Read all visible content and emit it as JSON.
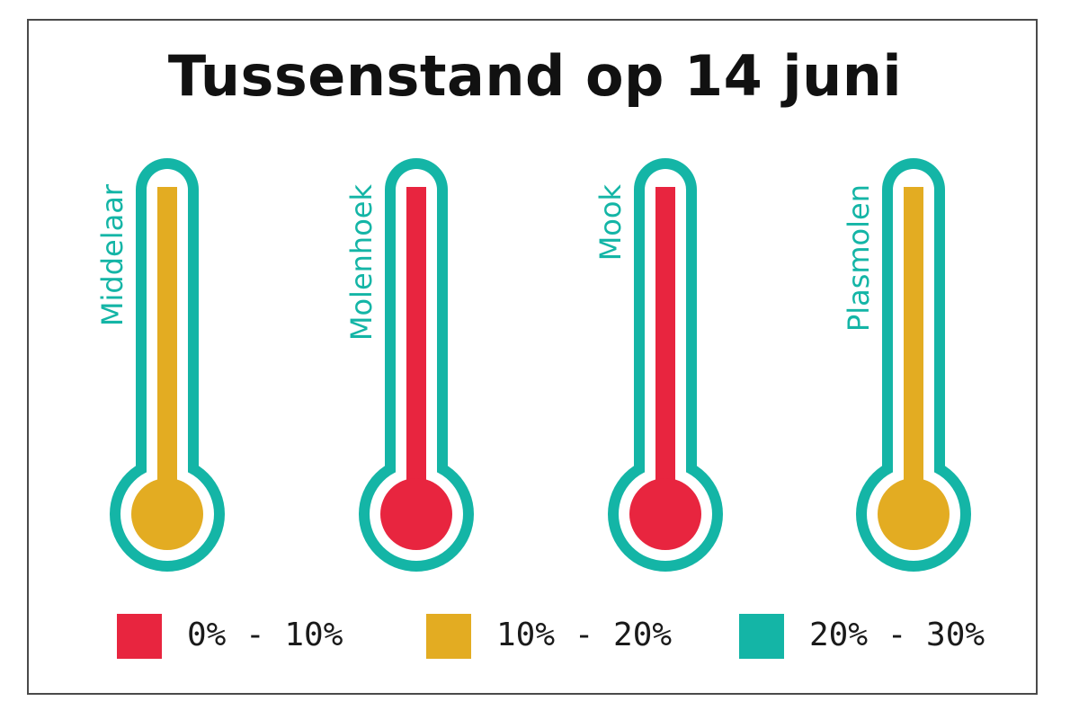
{
  "chart_data": {
    "type": "bar",
    "title": "Tussenstand op 14 juni",
    "categories": [
      "Middelaar",
      "Molenhoek",
      "Mook",
      "Plasmolen"
    ],
    "bands": [
      "10% - 20%",
      "0% - 10%",
      "0% - 10%",
      "10% - 20%"
    ],
    "legend": [
      {
        "label": "0% - 10%",
        "color": "#e8253f"
      },
      {
        "label": "10% - 20%",
        "color": "#e3ac22"
      },
      {
        "label": "20% - 30%",
        "color": "#14b5a6"
      }
    ],
    "outline_color": "#14b5a6"
  }
}
